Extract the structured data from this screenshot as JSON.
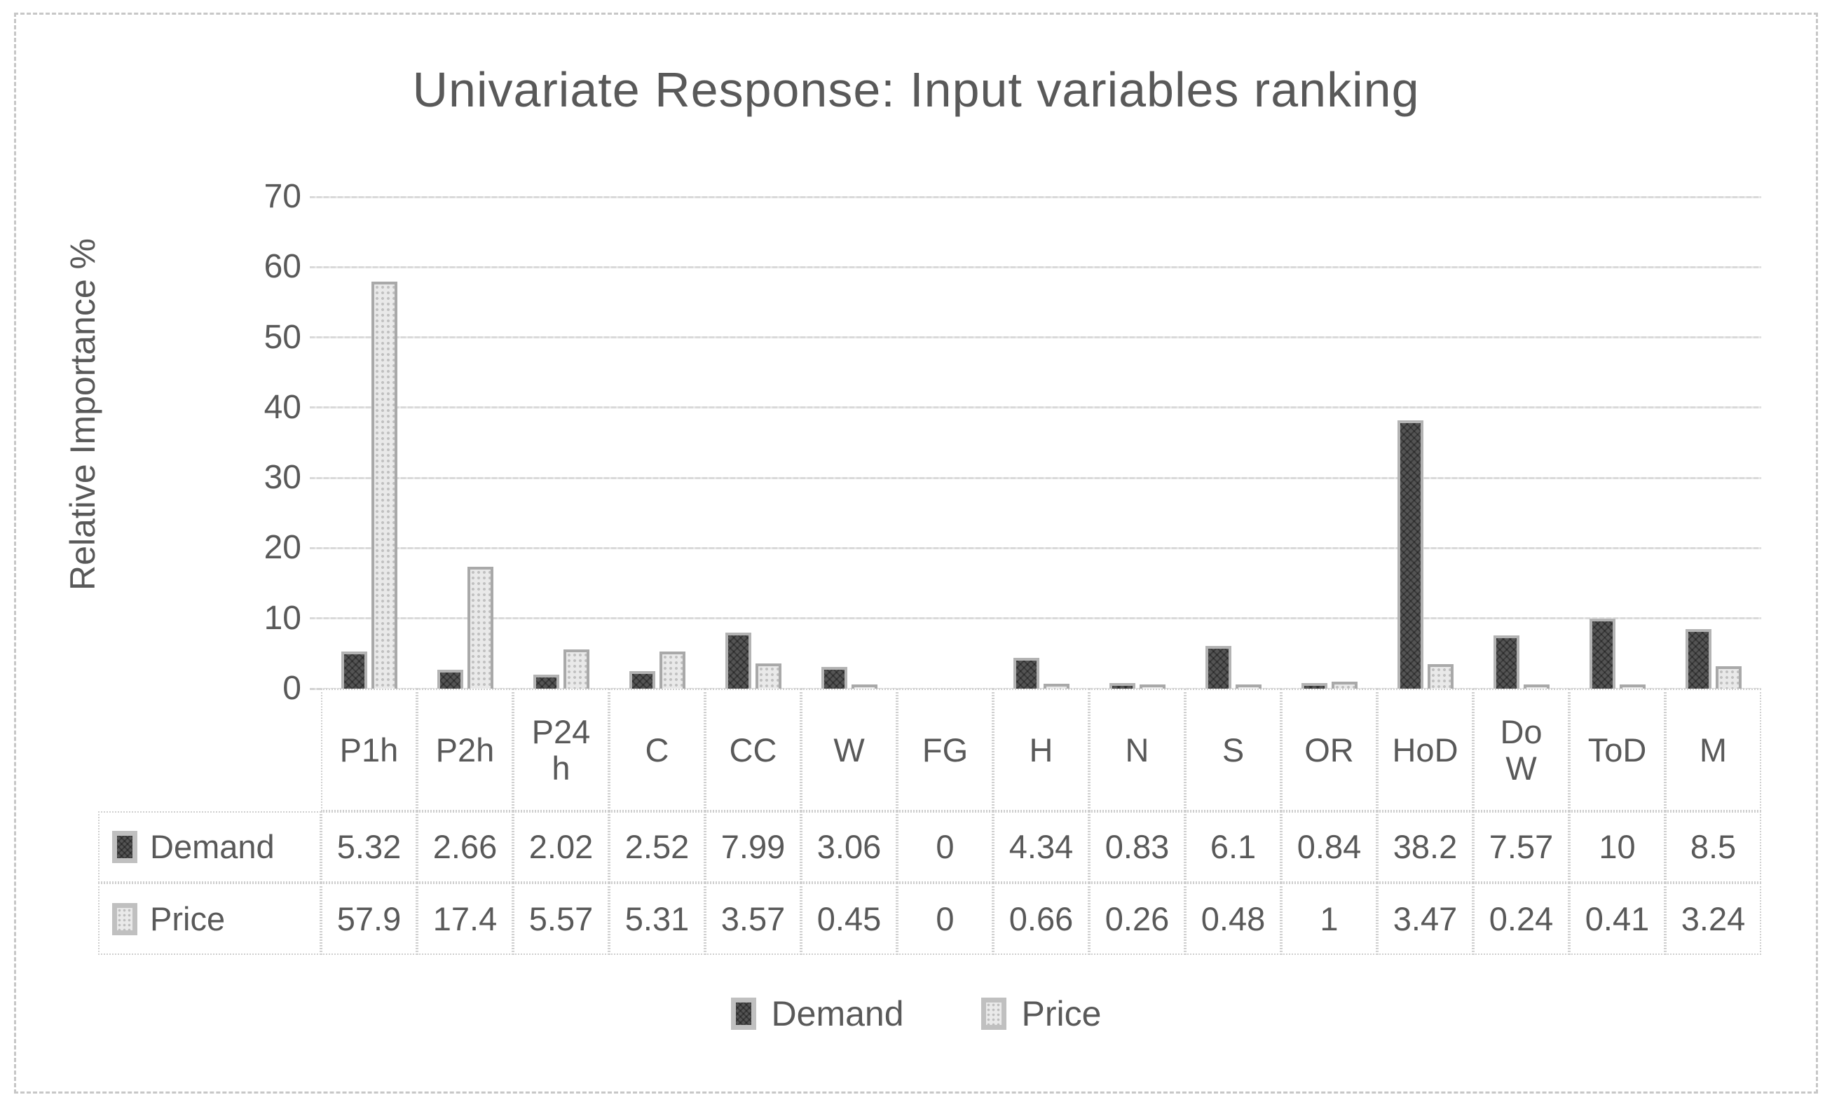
{
  "chart_data": {
    "type": "bar",
    "title": "Univariate Response: Input variables ranking",
    "xlabel": "",
    "ylabel": "Relative Importance %",
    "ylim": [
      0,
      70
    ],
    "yticks": [
      0,
      10,
      20,
      30,
      40,
      50,
      60,
      70
    ],
    "grid": true,
    "legend_position": "bottom",
    "has_data_table": true,
    "categories": [
      "P1h",
      "P2h",
      "P24h",
      "C",
      "CC",
      "W",
      "FG",
      "H",
      "N",
      "S",
      "OR",
      "HoD",
      "DoW",
      "ToD",
      "M"
    ],
    "category_display": [
      "P1h",
      "P2h",
      "P24\nh",
      "C",
      "CC",
      "W",
      "FG",
      "H",
      "N",
      "S",
      "OR",
      "HoD",
      "Do\nW",
      "ToD",
      "M"
    ],
    "series": [
      {
        "name": "Demand",
        "key": "demand",
        "values": [
          5.32,
          2.66,
          2.02,
          2.52,
          7.99,
          3.06,
          0,
          4.34,
          0.83,
          6.1,
          0.84,
          38.2,
          7.57,
          10,
          8.5
        ]
      },
      {
        "name": "Price",
        "key": "price",
        "values": [
          57.9,
          17.4,
          5.57,
          5.31,
          3.57,
          0.45,
          0,
          0.66,
          0.26,
          0.48,
          1,
          3.47,
          0.24,
          0.41,
          3.24
        ]
      }
    ]
  },
  "legend": {
    "items": [
      {
        "label": "Demand",
        "key": "demand"
      },
      {
        "label": "Price",
        "key": "price"
      }
    ]
  },
  "colors": {
    "text": "#595959",
    "gridline": "#d9d9d9",
    "table_border": "#cfcfcf",
    "frame_border": "#c7c7c7",
    "demand_fill": "#545454",
    "demand_border": "#b3b3b3",
    "price_fill": "#e9e9e9",
    "price_dots": "#c0c0c0",
    "price_border": "#a9a9a9",
    "swatch_frame": "#c0c0c0"
  }
}
